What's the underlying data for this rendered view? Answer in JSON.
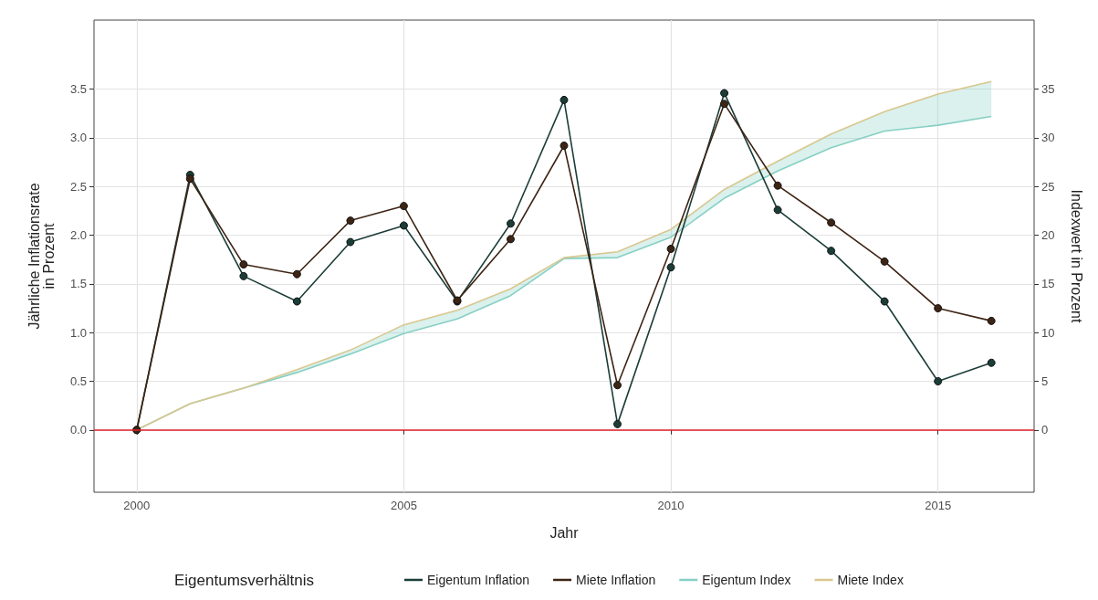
{
  "chart_data": {
    "type": "line",
    "xlabel": "Jahr",
    "ylabel": "Jährliche Inflationsrate\nin Prozent",
    "y2label": "Indexwert in Prozent",
    "legend_title": "Eigentumsverhältnis",
    "x": [
      2000,
      2001,
      2002,
      2003,
      2004,
      2005,
      2006,
      2007,
      2008,
      2009,
      2010,
      2011,
      2012,
      2013,
      2014,
      2015,
      2016
    ],
    "series": [
      {
        "name": "Eigentum Inflation",
        "color": "#1b3d38",
        "marker": "circle",
        "values": [
          0,
          2.62,
          1.58,
          1.32,
          1.93,
          2.1,
          1.32,
          2.12,
          3.39,
          0.06,
          1.67,
          3.46,
          2.26,
          1.84,
          1.32,
          0.5,
          0.69
        ]
      },
      {
        "name": "Miete Inflation",
        "color": "#3d2414",
        "marker": "circle",
        "values": [
          0,
          2.58,
          1.7,
          1.6,
          2.15,
          2.3,
          1.33,
          1.96,
          2.92,
          0.46,
          1.86,
          3.35,
          2.51,
          2.13,
          1.73,
          1.25,
          1.12
        ]
      },
      {
        "name": "Eigentum Index",
        "color": "#86cfc4",
        "marker": "none",
        "axis": "y2",
        "values": [
          0,
          2.7,
          4.3,
          5.9,
          7.8,
          9.9,
          11.4,
          13.8,
          17.6,
          17.7,
          19.8,
          23.8,
          26.6,
          29.0,
          30.7,
          31.3,
          32.2
        ],
        "lower": [
          0,
          2.7,
          4.3,
          5.9,
          7.8,
          9.9,
          11.4,
          13.8,
          17.6,
          17.7,
          19.8,
          23.8,
          26.6,
          29.0,
          30.7,
          31.3,
          32.2
        ],
        "upper": [
          0,
          2.7,
          4.3,
          6.2,
          8.2,
          10.8,
          12.3,
          14.5,
          17.7,
          18.3,
          20.6,
          24.7,
          27.6,
          30.4,
          32.7,
          34.5,
          35.8
        ]
      },
      {
        "name": "Miete Index",
        "color": "#d9c78f",
        "marker": "none",
        "axis": "y2",
        "values": [
          0,
          2.7,
          4.3,
          6.2,
          8.2,
          10.8,
          12.3,
          14.5,
          17.7,
          18.3,
          20.6,
          24.7,
          27.6,
          30.4,
          32.7,
          34.5,
          35.8
        ]
      }
    ],
    "xlim": [
      1999.2,
      2016.8
    ],
    "xticks": [
      2000,
      2005,
      2010,
      2015
    ],
    "ylim": [
      -0.64,
      4.21
    ],
    "yticks": [
      {
        "value": 0,
        "label": "0.0"
      },
      {
        "value": 0.5,
        "label": "0.5"
      },
      {
        "value": 1,
        "label": "1.0"
      },
      {
        "value": 1.5,
        "label": "1.5"
      },
      {
        "value": 2,
        "label": "2.0"
      },
      {
        "value": 2.5,
        "label": "2.5"
      },
      {
        "value": 3,
        "label": "3.0"
      },
      {
        "value": 3.5,
        "label": "3.5"
      }
    ],
    "y2lim": [
      -6.4,
      42.1
    ],
    "y2ticks": [
      0,
      5,
      10,
      15,
      20,
      25,
      30,
      35
    ],
    "ref_lines": [
      {
        "axis": "y",
        "value": 0,
        "color": "#e0202a"
      }
    ],
    "grid": true,
    "legend": "bottom",
    "line_style": "solid"
  }
}
